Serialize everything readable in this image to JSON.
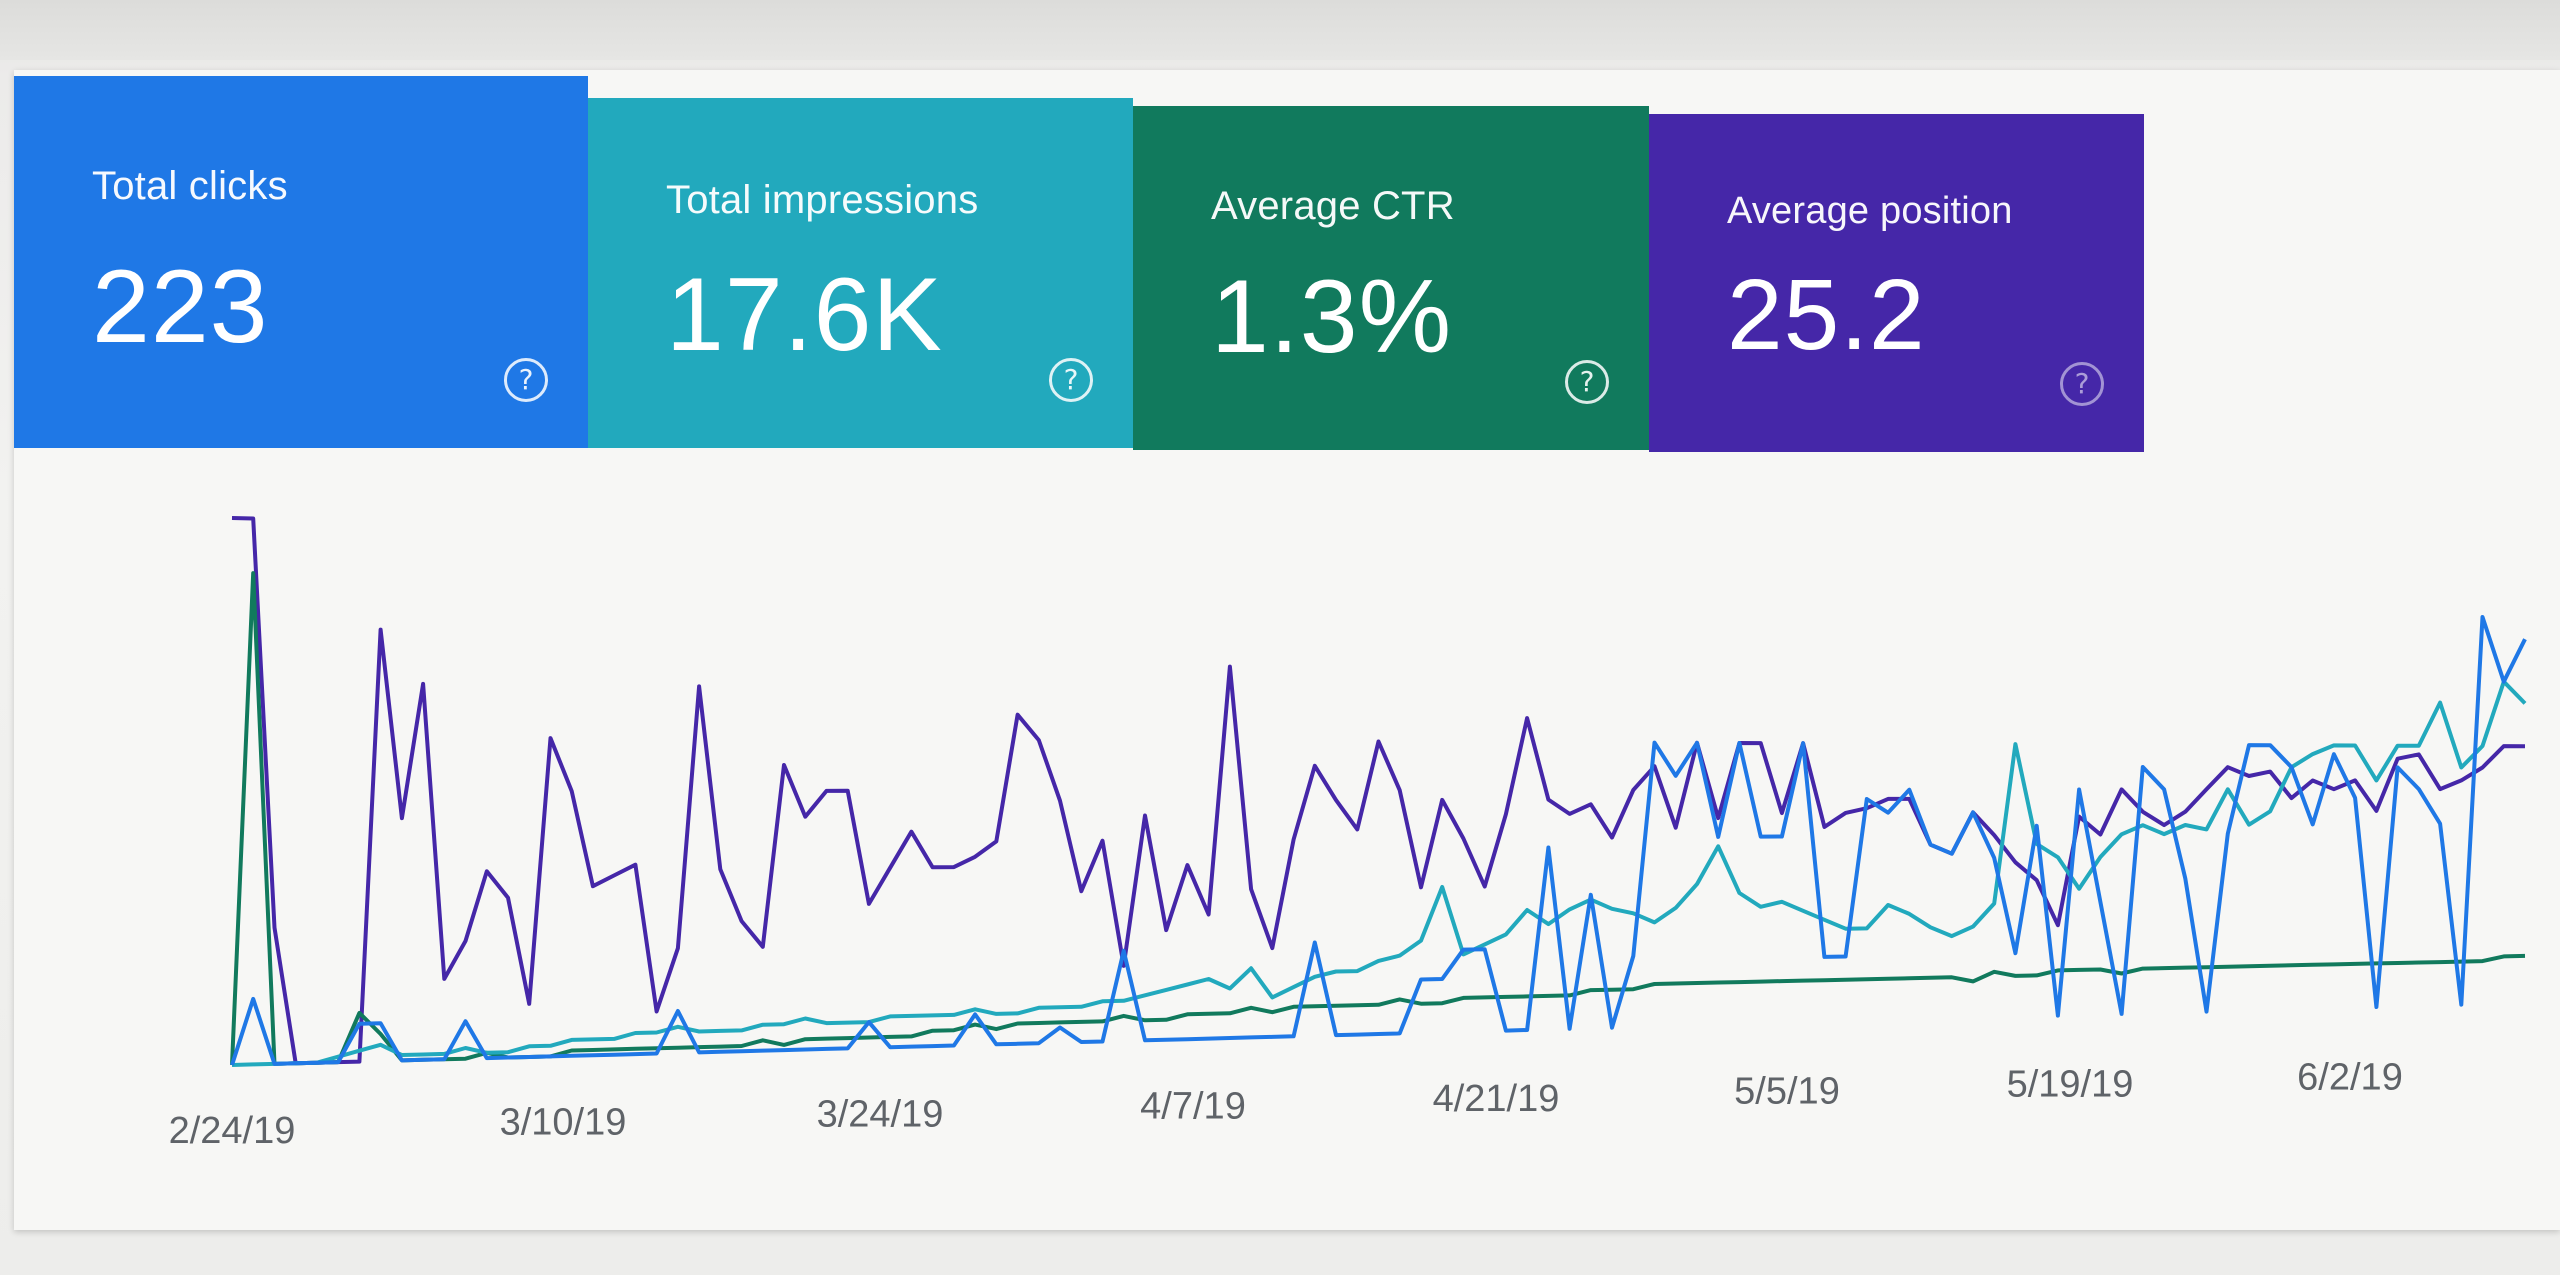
{
  "metrics": {
    "clicks": {
      "label": "Total clicks",
      "value": "223",
      "color": "#1f78e6"
    },
    "impressions": {
      "label": "Total impressions",
      "value": "17.6K",
      "color": "#22a9bd"
    },
    "ctr": {
      "label": "Average CTR",
      "value": "1.3%",
      "color": "#117a5d"
    },
    "position": {
      "label": "Average position",
      "value": "25.2",
      "color": "#4527a8"
    },
    "help_icon": "?"
  },
  "chart_data": {
    "type": "line",
    "x_ticks": [
      "2/24/19",
      "3/10/19",
      "3/24/19",
      "4/7/19",
      "4/21/19",
      "5/5/19",
      "5/19/19",
      "6/2/19"
    ],
    "x_range": [
      "2/24/19",
      "6/10/19"
    ],
    "y_range": [
      0,
      100
    ],
    "grid": false,
    "series": [
      {
        "name": "Total clicks",
        "color": "#1f78e6",
        "values": [
          0,
          12,
          0,
          0,
          0,
          0,
          7,
          7,
          0,
          0,
          0,
          7,
          0,
          0,
          0,
          0,
          0,
          0,
          0,
          0,
          0,
          8,
          0,
          0,
          0,
          0,
          0,
          0,
          0,
          0,
          5,
          0,
          0,
          0,
          0,
          6,
          0,
          0,
          0,
          3,
          0,
          0,
          18,
          0,
          0,
          0,
          0,
          0,
          0,
          0,
          0,
          19,
          0,
          0,
          0,
          0,
          11,
          11,
          17,
          17,
          0,
          0,
          38,
          0,
          28,
          0,
          15,
          60,
          53,
          60,
          40,
          60,
          40,
          40,
          60,
          14,
          14,
          48,
          45,
          50,
          38,
          36,
          45,
          35,
          14,
          42,
          0,
          50,
          25,
          0,
          55,
          50,
          30,
          0,
          40,
          60,
          60,
          55,
          42,
          58,
          48,
          0,
          55,
          50,
          42,
          0,
          90,
          75,
          85
        ]
      },
      {
        "name": "Total impressions",
        "color": "#22a9bd",
        "values": [
          0,
          0,
          0,
          0,
          0,
          1,
          2,
          3,
          1,
          1,
          1,
          2,
          1,
          1,
          2,
          2,
          3,
          3,
          3,
          4,
          4,
          5,
          4,
          4,
          4,
          5,
          5,
          6,
          5,
          5,
          5,
          6,
          6,
          6,
          6,
          7,
          6,
          6,
          7,
          7,
          7,
          8,
          8,
          9,
          10,
          11,
          12,
          10,
          14,
          8,
          10,
          12,
          13,
          13,
          15,
          16,
          19,
          30,
          16,
          18,
          20,
          25,
          22,
          25,
          27,
          25,
          24,
          22,
          25,
          30,
          38,
          28,
          25,
          26,
          24,
          22,
          20,
          20,
          25,
          23,
          20,
          18,
          20,
          25,
          60,
          38,
          35,
          28,
          35,
          40,
          42,
          40,
          42,
          41,
          50,
          42,
          45,
          55,
          58,
          60,
          60,
          52,
          60,
          60,
          70,
          55,
          60,
          75,
          70
        ]
      },
      {
        "name": "Average CTR",
        "color": "#117a5d",
        "values": [
          0,
          90,
          0,
          0,
          0,
          0,
          9,
          5,
          0,
          0,
          0,
          0,
          1,
          0,
          0,
          0,
          1,
          1,
          1,
          1,
          1,
          1,
          1,
          1,
          1,
          2,
          1,
          2,
          2,
          2,
          2,
          2,
          2,
          3,
          3,
          4,
          3,
          4,
          4,
          4,
          4,
          4,
          5,
          4,
          4,
          5,
          5,
          5,
          6,
          5,
          6,
          6,
          6,
          6,
          6,
          7,
          6,
          6,
          7,
          7,
          7,
          7,
          7,
          7,
          8,
          8,
          8,
          9,
          9,
          9,
          9,
          9,
          9,
          9,
          9,
          9,
          9,
          9,
          9,
          9,
          9,
          9,
          8,
          10,
          9,
          9,
          10,
          10,
          10,
          9,
          10,
          10,
          10,
          10,
          10,
          10,
          10,
          10,
          10,
          10,
          10,
          10,
          10,
          10,
          10,
          10,
          10,
          11,
          11
        ]
      },
      {
        "name": "Average position",
        "color": "#4527a8",
        "values": [
          100,
          100,
          25,
          0,
          0,
          0,
          0,
          80,
          45,
          70,
          15,
          22,
          35,
          30,
          10,
          60,
          50,
          32,
          34,
          36,
          8,
          20,
          70,
          35,
          25,
          20,
          55,
          45,
          50,
          50,
          28,
          35,
          42,
          35,
          35,
          37,
          40,
          65,
          60,
          48,
          30,
          40,
          15,
          45,
          22,
          35,
          25,
          75,
          30,
          18,
          40,
          55,
          48,
          42,
          60,
          50,
          30,
          48,
          40,
          30,
          45,
          65,
          48,
          45,
          47,
          40,
          50,
          55,
          42,
          60,
          44,
          60,
          60,
          45,
          60,
          42,
          45,
          46,
          48,
          48,
          38,
          36,
          45,
          40,
          34,
          30,
          20,
          44,
          40,
          50,
          45,
          42,
          45,
          50,
          55,
          53,
          54,
          48,
          52,
          50,
          52,
          45,
          57,
          58,
          50,
          52,
          55,
          60,
          60
        ]
      }
    ]
  }
}
